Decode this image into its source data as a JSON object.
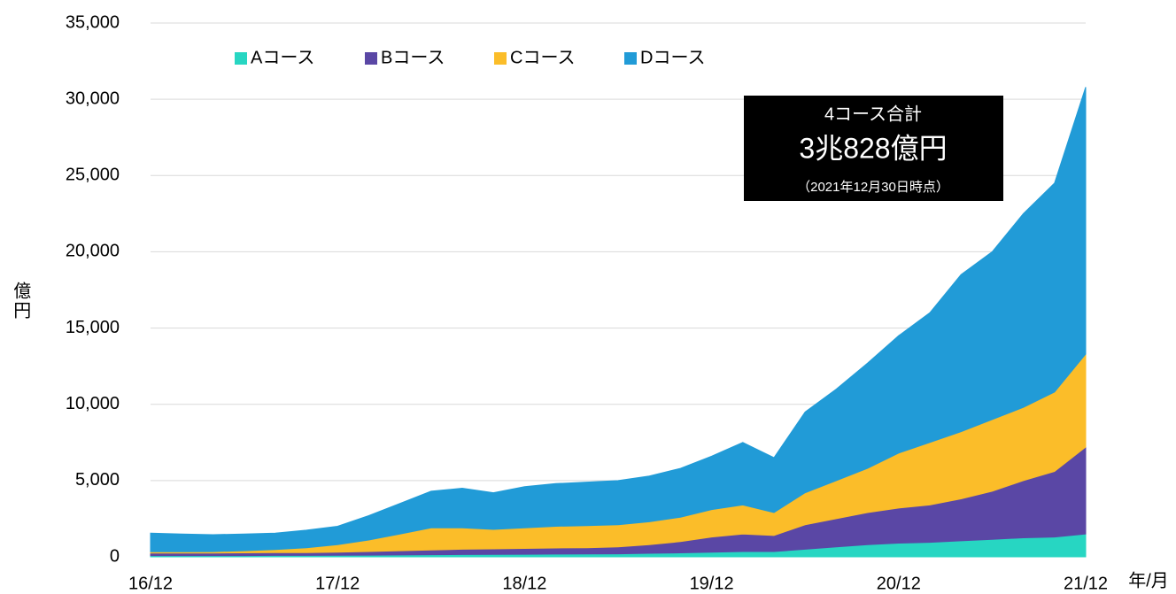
{
  "chart_data": {
    "type": "stacked_area",
    "y_label": "億円",
    "x_label": "年/月",
    "annotation": {
      "line1": "4コース合計",
      "line2": "3兆828億円",
      "line3": "（2021年12月30日時点）"
    },
    "categories": [
      "16/12",
      null,
      null,
      null,
      null,
      null,
      "17/12",
      null,
      null,
      null,
      null,
      null,
      "18/12",
      null,
      null,
      null,
      null,
      null,
      "19/12",
      null,
      null,
      null,
      null,
      null,
      "20/12",
      null,
      null,
      null,
      null,
      null,
      "21/12"
    ],
    "series": [
      {
        "name": "Aコース",
        "color": "#27d6c2",
        "values": [
          80,
          80,
          80,
          80,
          90,
          90,
          100,
          110,
          120,
          140,
          150,
          160,
          170,
          180,
          190,
          200,
          230,
          260,
          300,
          350,
          350,
          500,
          650,
          800,
          900,
          950,
          1050,
          1150,
          1250,
          1300,
          1500
        ]
      },
      {
        "name": "Bコース",
        "color": "#5a47a5",
        "values": [
          170,
          170,
          170,
          180,
          180,
          190,
          210,
          240,
          280,
          310,
          350,
          360,
          380,
          400,
          410,
          450,
          570,
          740,
          1000,
          1150,
          1050,
          1600,
          1850,
          2100,
          2300,
          2450,
          2750,
          3150,
          3750,
          4300,
          5700
        ]
      },
      {
        "name": "Cコース",
        "color": "#fbbd29",
        "values": [
          80,
          80,
          90,
          140,
          210,
          320,
          490,
          750,
          1100,
          1450,
          1400,
          1280,
          1350,
          1420,
          1450,
          1450,
          1500,
          1600,
          1800,
          1900,
          1500,
          2100,
          2500,
          2900,
          3600,
          4100,
          4400,
          4700,
          4800,
          5200,
          6100
        ]
      },
      {
        "name": "Dコース",
        "color": "#219bd7",
        "values": [
          1220,
          1170,
          1110,
          1100,
          1070,
          1150,
          1200,
          1600,
          2000,
          2400,
          2600,
          2400,
          2700,
          2800,
          2850,
          2900,
          3000,
          3200,
          3500,
          4100,
          3600,
          5300,
          6000,
          6900,
          7700,
          8500,
          10300,
          11000,
          12700,
          13700,
          17500
        ]
      }
    ],
    "ylim": [
      0,
      35000
    ],
    "yticks": [
      0,
      {
        "value": 5000,
        "label": "5,000"
      },
      {
        "value": 10000,
        "label": "10,000"
      },
      {
        "value": 15000,
        "label": "15,000"
      },
      {
        "value": 20000,
        "label": "20,000"
      },
      {
        "value": 25000,
        "label": "25,000"
      },
      {
        "value": 30000,
        "label": "30,000"
      },
      {
        "value": 35000,
        "label": "35,000"
      }
    ],
    "grid": true,
    "legend": "top-left"
  }
}
